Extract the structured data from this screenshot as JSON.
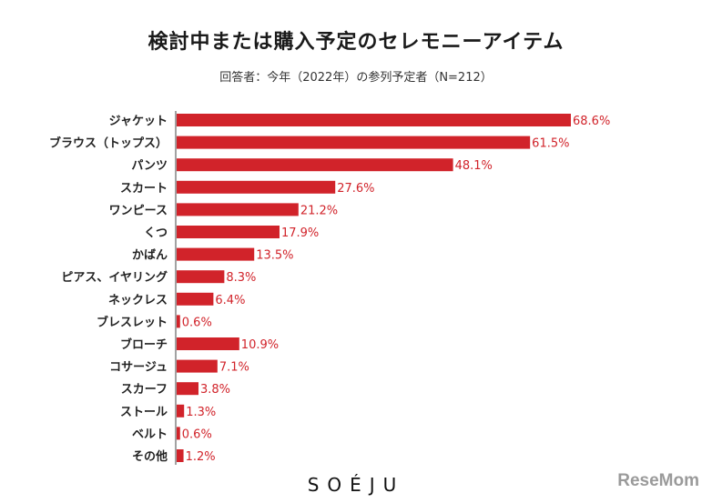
{
  "chart_data": {
    "type": "bar",
    "orientation": "horizontal",
    "title": "検討中または購入予定のセレモニーアイテム",
    "subtitle": "回答者：今年（2022年）の参列予定者（N=212）",
    "categories": [
      "ジャケット",
      "ブラウス（トップス）",
      "パンツ",
      "スカート",
      "ワンピース",
      "くつ",
      "かばん",
      "ピアス、イヤリング",
      "ネックレス",
      "ブレスレット",
      "ブローチ",
      "コサージュ",
      "スカーフ",
      "ストール",
      "ベルト",
      "その他"
    ],
    "values": [
      68.6,
      61.5,
      48.1,
      27.6,
      21.2,
      17.9,
      13.5,
      8.3,
      6.4,
      0.6,
      10.9,
      7.1,
      3.8,
      1.3,
      0.6,
      1.2
    ],
    "value_labels": [
      "68.6%",
      "61.5%",
      "48.1%",
      "27.6%",
      "21.2%",
      "17.9%",
      "13.5%",
      "8.3%",
      "6.4%",
      "0.6%",
      "10.9%",
      "7.1%",
      "3.8%",
      "1.3%",
      "0.6%",
      "1.2%"
    ],
    "xlim": [
      0,
      100
    ],
    "bar_color": "#d1232a",
    "label_color": "#d1232a",
    "grid": false,
    "legend": "none"
  },
  "brand": "SOÉJU",
  "watermark": "ReseMom"
}
